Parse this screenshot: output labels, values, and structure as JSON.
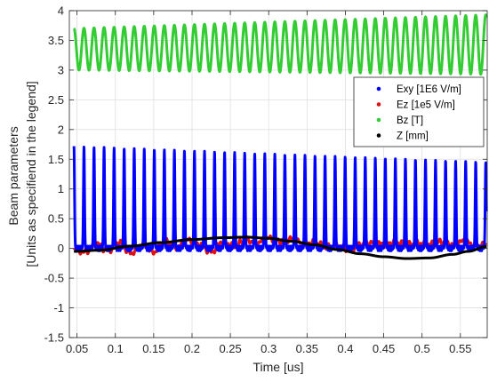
{
  "chart_data": {
    "type": "line",
    "title": "",
    "xlabel": "Time [us]",
    "ylabel": [
      "Beam parameters",
      "[Units as specifiend in the legend]"
    ],
    "xlim": [
      0.04,
      0.585
    ],
    "ylim": [
      -1.5,
      4
    ],
    "xticks": [
      0.05,
      0.1,
      0.15,
      0.2,
      0.25,
      0.3,
      0.35,
      0.4,
      0.45,
      0.5,
      0.55
    ],
    "xtick_labels": [
      "0.05",
      "0.1",
      "0.15",
      "0.2",
      "0.25",
      "0.3",
      "0.35",
      "0.4",
      "0.45",
      "0.5",
      "0.55"
    ],
    "yticks": [
      -1.5,
      -1,
      -0.5,
      0,
      0.5,
      1,
      1.5,
      2,
      2.5,
      3,
      3.5,
      4
    ],
    "ytick_labels": [
      "-1.5",
      "-1",
      "-0.5",
      "0",
      "0.5",
      "1",
      "1.5",
      "2",
      "2.5",
      "3",
      "3.5",
      "4"
    ],
    "grid": true,
    "legend_position": "right",
    "series": [
      {
        "name": "Exy [1E6 V/m]",
        "color": "#0000ff",
        "shape": "pulse-train",
        "x_start": 0.046,
        "x_end": 0.584,
        "period": 0.0131,
        "peak_start": 1.72,
        "peak_end": 1.45,
        "baseline": 0.0
      },
      {
        "name": "Ez [1e5 V/m]",
        "color": "#e01010",
        "shape": "noise",
        "x_start": 0.046,
        "x_end": 0.584,
        "points": [
          [
            0.046,
            -0.02
          ],
          [
            0.06,
            -0.06
          ],
          [
            0.075,
            0.08
          ],
          [
            0.09,
            -0.04
          ],
          [
            0.105,
            0.1
          ],
          [
            0.12,
            -0.08
          ],
          [
            0.135,
            0.07
          ],
          [
            0.15,
            -0.06
          ],
          [
            0.165,
            0.12
          ],
          [
            0.18,
            0.02
          ],
          [
            0.195,
            0.14
          ],
          [
            0.21,
            0.06
          ],
          [
            0.225,
            -0.06
          ],
          [
            0.24,
            0.12
          ],
          [
            0.255,
            0.04
          ],
          [
            0.27,
            0.14
          ],
          [
            0.285,
            0.1
          ],
          [
            0.3,
            0.17
          ],
          [
            0.315,
            0.12
          ],
          [
            0.33,
            0.16
          ],
          [
            0.345,
            0.08
          ],
          [
            0.36,
            0.1
          ],
          [
            0.375,
            0.02
          ],
          [
            0.39,
            0.05
          ],
          [
            0.405,
            -0.02
          ],
          [
            0.42,
            0.06
          ],
          [
            0.435,
            0.09
          ],
          [
            0.45,
            0.07
          ],
          [
            0.465,
            0.1
          ],
          [
            0.48,
            0.06
          ],
          [
            0.495,
            0.09
          ],
          [
            0.51,
            0.07
          ],
          [
            0.525,
            0.11
          ],
          [
            0.54,
            0.06
          ],
          [
            0.555,
            0.12
          ],
          [
            0.57,
            0.04
          ],
          [
            0.584,
            0.06
          ]
        ]
      },
      {
        "name": "Bz [T]",
        "color": "#33cc33",
        "shape": "oscillation",
        "x_start": 0.046,
        "x_end": 0.584,
        "period": 0.0131,
        "max_start": 3.7,
        "max_end": 3.93,
        "min_start": 3.0,
        "min_end": 2.93
      },
      {
        "name": "Z [mm]",
        "color": "#000000",
        "shape": "smooth",
        "x_start": 0.046,
        "x_end": 0.584,
        "points": [
          [
            0.046,
            -0.05
          ],
          [
            0.08,
            -0.03
          ],
          [
            0.12,
            0.04
          ],
          [
            0.16,
            0.1
          ],
          [
            0.2,
            0.15
          ],
          [
            0.24,
            0.18
          ],
          [
            0.27,
            0.19
          ],
          [
            0.3,
            0.17
          ],
          [
            0.33,
            0.12
          ],
          [
            0.36,
            0.06
          ],
          [
            0.39,
            -0.02
          ],
          [
            0.42,
            -0.09
          ],
          [
            0.45,
            -0.14
          ],
          [
            0.48,
            -0.17
          ],
          [
            0.51,
            -0.16
          ],
          [
            0.54,
            -0.1
          ],
          [
            0.56,
            -0.05
          ],
          [
            0.584,
            0.03
          ]
        ]
      }
    ]
  }
}
